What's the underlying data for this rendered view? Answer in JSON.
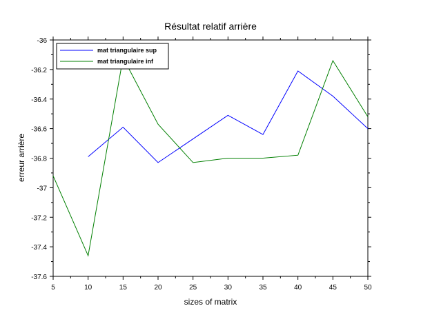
{
  "chart_data": {
    "type": "line",
    "title": "Résultat relatif arrière",
    "xlabel": "sizes of matrix",
    "ylabel": "erreur arrière",
    "xlim": [
      5,
      50
    ],
    "ylim": [
      -37.6,
      -36
    ],
    "xticks": [
      5,
      10,
      15,
      20,
      25,
      30,
      35,
      40,
      45,
      50
    ],
    "yticks": [
      -36,
      -36.2,
      -36.4,
      -36.6,
      -36.8,
      -37,
      -37.2,
      -37.4,
      -37.6
    ],
    "grid": false,
    "legend_position": "top-left",
    "series": [
      {
        "name": "mat triangulaire sup",
        "color": "#0000ff",
        "x": [
          10,
          15,
          20,
          25,
          30,
          35,
          40,
          45,
          50
        ],
        "y": [
          -36.79,
          -36.59,
          -36.83,
          -36.67,
          -36.51,
          -36.64,
          -36.21,
          -36.38,
          -36.6
        ]
      },
      {
        "name": "mat triangulaire inf",
        "color": "#007f00",
        "x": [
          5,
          10,
          15,
          20,
          25,
          30,
          35,
          40,
          45,
          50
        ],
        "y": [
          -36.92,
          -37.46,
          -36.12,
          -36.57,
          -36.83,
          -36.8,
          -36.8,
          -36.78,
          -36.14,
          -36.52
        ]
      }
    ]
  }
}
